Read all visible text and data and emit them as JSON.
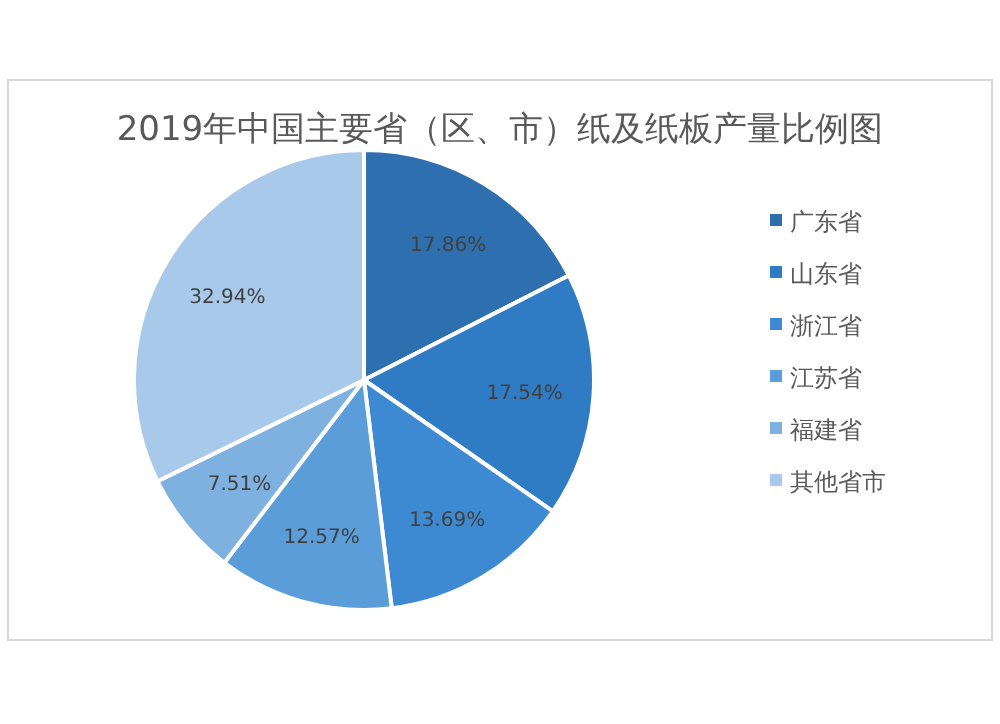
{
  "chart_data": {
    "type": "pie",
    "title": "2019年中国主要省（区、市）纸及纸板产量比例图",
    "categories": [
      "广东省",
      "山东省",
      "浙江省",
      "江苏省",
      "福建省",
      "其他省市"
    ],
    "values": [
      17.86,
      17.54,
      13.69,
      12.57,
      7.51,
      32.94
    ],
    "value_labels": [
      "17.86%",
      "17.54%",
      "13.69%",
      "12.57%",
      "7.51%",
      "32.94%"
    ],
    "colors": [
      "#2e6fb0",
      "#2f7cc4",
      "#3e8ad2",
      "#5b9dd9",
      "#7eb1e0",
      "#a9c9ea"
    ],
    "legend": "right"
  }
}
